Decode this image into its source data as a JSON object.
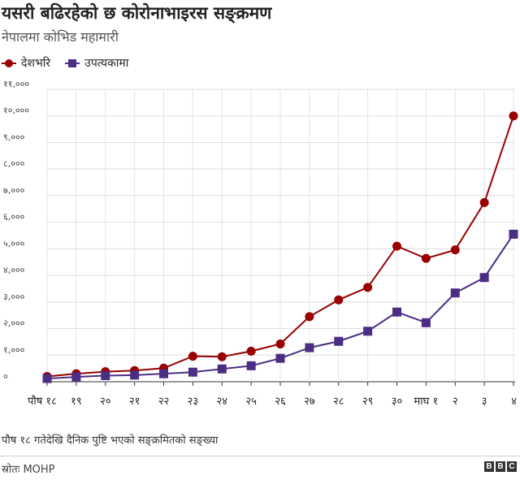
{
  "header": {
    "title": "यसरी बढिरहेको छ कोरोनाभाइरस सङ्क्रमण",
    "subtitle": "नेपालमा कोभिड महामारी"
  },
  "chart_data": {
    "type": "line",
    "title": "यसरी बढिरहेको छ कोरोनाभाइरस सङ्क्रमण",
    "subtitle": "नेपालमा कोभिड महामारी",
    "categories": [
      "पौष १८",
      "१९",
      "२०",
      "२१",
      "२२",
      "२३",
      "२४",
      "२५",
      "२६",
      "२७",
      "२८",
      "२९",
      "३०",
      "माघ १",
      "२",
      "३",
      "४"
    ],
    "y_ticks": [
      0,
      1000,
      2000,
      3000,
      4000,
      5000,
      6000,
      7000,
      8000,
      9000,
      10000,
      11000
    ],
    "y_tick_labels": [
      "०",
      "१,०००",
      "२,०००",
      "३,०००",
      "४,०००",
      "५,०००",
      "६,०००",
      "७,०००",
      "८,०००",
      "९,०००",
      "१०,०००",
      "११,०००"
    ],
    "ylim": [
      0,
      11000
    ],
    "grid": true,
    "legend_position": "top-left",
    "series": [
      {
        "name": "देशभरि",
        "color": "#990000",
        "marker": "circle",
        "values": [
          200,
          300,
          380,
          420,
          510,
          960,
          940,
          1150,
          1420,
          2450,
          3080,
          3550,
          5100,
          4640,
          4960,
          6740,
          10000
        ]
      },
      {
        "name": "उपत्यकामा",
        "color": "#4b2e83",
        "marker": "square",
        "values": [
          120,
          180,
          230,
          250,
          300,
          360,
          480,
          600,
          880,
          1280,
          1520,
          1900,
          2620,
          2220,
          3340,
          3920,
          5550
        ]
      }
    ]
  },
  "footer": {
    "note": "पौष १८ गतेदेखि दैनिक पुष्टि भएको सङ्क्रमितको सङ्ख्या",
    "source": "स्रोतः MOHP",
    "logo_letters": [
      "B",
      "B",
      "C"
    ]
  }
}
